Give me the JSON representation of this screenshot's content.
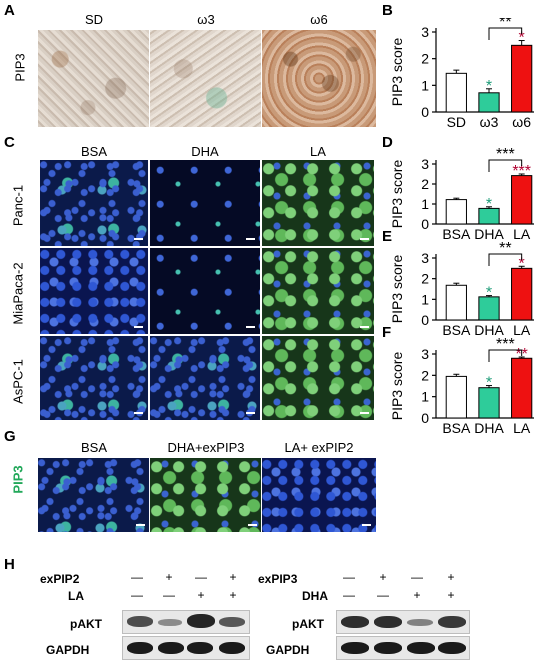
{
  "panels": {
    "A": {
      "letter": "A",
      "row_label": "PIP3",
      "columns": [
        "SD",
        "ω3",
        "ω6"
      ]
    },
    "B": {
      "letter": "B"
    },
    "C": {
      "letter": "C",
      "columns": [
        "BSA",
        "DHA",
        "LA"
      ],
      "rows": [
        "Panc-1",
        "MiaPaca-2",
        "AsPC-1"
      ]
    },
    "D": {
      "letter": "D"
    },
    "E": {
      "letter": "E"
    },
    "F": {
      "letter": "F"
    },
    "G": {
      "letter": "G",
      "row_label": "PIP3",
      "columns": [
        "BSA",
        "DHA+exPIP3",
        "LA+ exPIP2"
      ]
    },
    "H": {
      "letter": "H",
      "left": {
        "row1_label": "exPIP2",
        "row1_signs": [
          "—",
          "+",
          "—",
          "+"
        ],
        "row2_label": "LA",
        "row2_signs": [
          "—",
          "—",
          "+",
          "+"
        ],
        "blots": [
          "pAKT",
          "GAPDH"
        ]
      },
      "right": {
        "row1_label": "exPIP3",
        "row1_signs": [
          "—",
          "+",
          "—",
          "+"
        ],
        "row2_label": "DHA",
        "row2_signs": [
          "—",
          "—",
          "+",
          "+"
        ],
        "blots": [
          "pAKT",
          "GAPDH"
        ]
      }
    }
  },
  "chart_data": [
    {
      "panel": "B",
      "type": "bar",
      "ylabel": "PIP3 score",
      "ylim": [
        0,
        3
      ],
      "yticks": [
        0,
        1,
        2,
        3
      ],
      "categories": [
        "SD",
        "ω3",
        "ω6"
      ],
      "values": [
        1.45,
        0.72,
        2.5
      ],
      "errors": [
        0.12,
        0.15,
        0.18
      ],
      "colors": [
        "#ffffff",
        "#2ecc9a",
        "#ee1111"
      ],
      "stars": [
        "",
        "*",
        "*"
      ],
      "bracket": {
        "from": 1,
        "to": 2,
        "label": "**"
      }
    },
    {
      "panel": "D",
      "type": "bar",
      "ylabel": "PIP3 score",
      "ylim": [
        0,
        3
      ],
      "yticks": [
        0,
        1,
        2,
        3
      ],
      "categories": [
        "BSA",
        "DHA",
        "LA"
      ],
      "values": [
        1.22,
        0.78,
        2.42
      ],
      "errors": [
        0.07,
        0.08,
        0.08
      ],
      "colors": [
        "#ffffff",
        "#2ecc9a",
        "#ee1111"
      ],
      "stars": [
        "",
        "*",
        "***"
      ],
      "bracket": {
        "from": 1,
        "to": 2,
        "label": "***"
      }
    },
    {
      "panel": "E",
      "type": "bar",
      "ylabel": "PIP3 score",
      "ylim": [
        0,
        3
      ],
      "yticks": [
        0,
        1,
        2,
        3
      ],
      "categories": [
        "BSA",
        "DHA",
        "LA"
      ],
      "values": [
        1.68,
        1.12,
        2.5
      ],
      "errors": [
        0.1,
        0.06,
        0.1
      ],
      "colors": [
        "#ffffff",
        "#2ecc9a",
        "#ee1111"
      ],
      "stars": [
        "",
        "*",
        "*"
      ],
      "bracket": {
        "from": 1,
        "to": 2,
        "label": "**"
      }
    },
    {
      "panel": "F",
      "type": "bar",
      "ylabel": "PIP3 score",
      "ylim": [
        0,
        3
      ],
      "yticks": [
        0,
        1,
        2,
        3
      ],
      "categories": [
        "BSA",
        "DHA",
        "LA"
      ],
      "values": [
        1.95,
        1.42,
        2.8
      ],
      "errors": [
        0.1,
        0.1,
        0.06
      ],
      "colors": [
        "#ffffff",
        "#2ecc9a",
        "#ee1111"
      ],
      "stars": [
        "",
        "*",
        "**"
      ],
      "bracket": {
        "from": 1,
        "to": 2,
        "label": "***"
      }
    }
  ]
}
